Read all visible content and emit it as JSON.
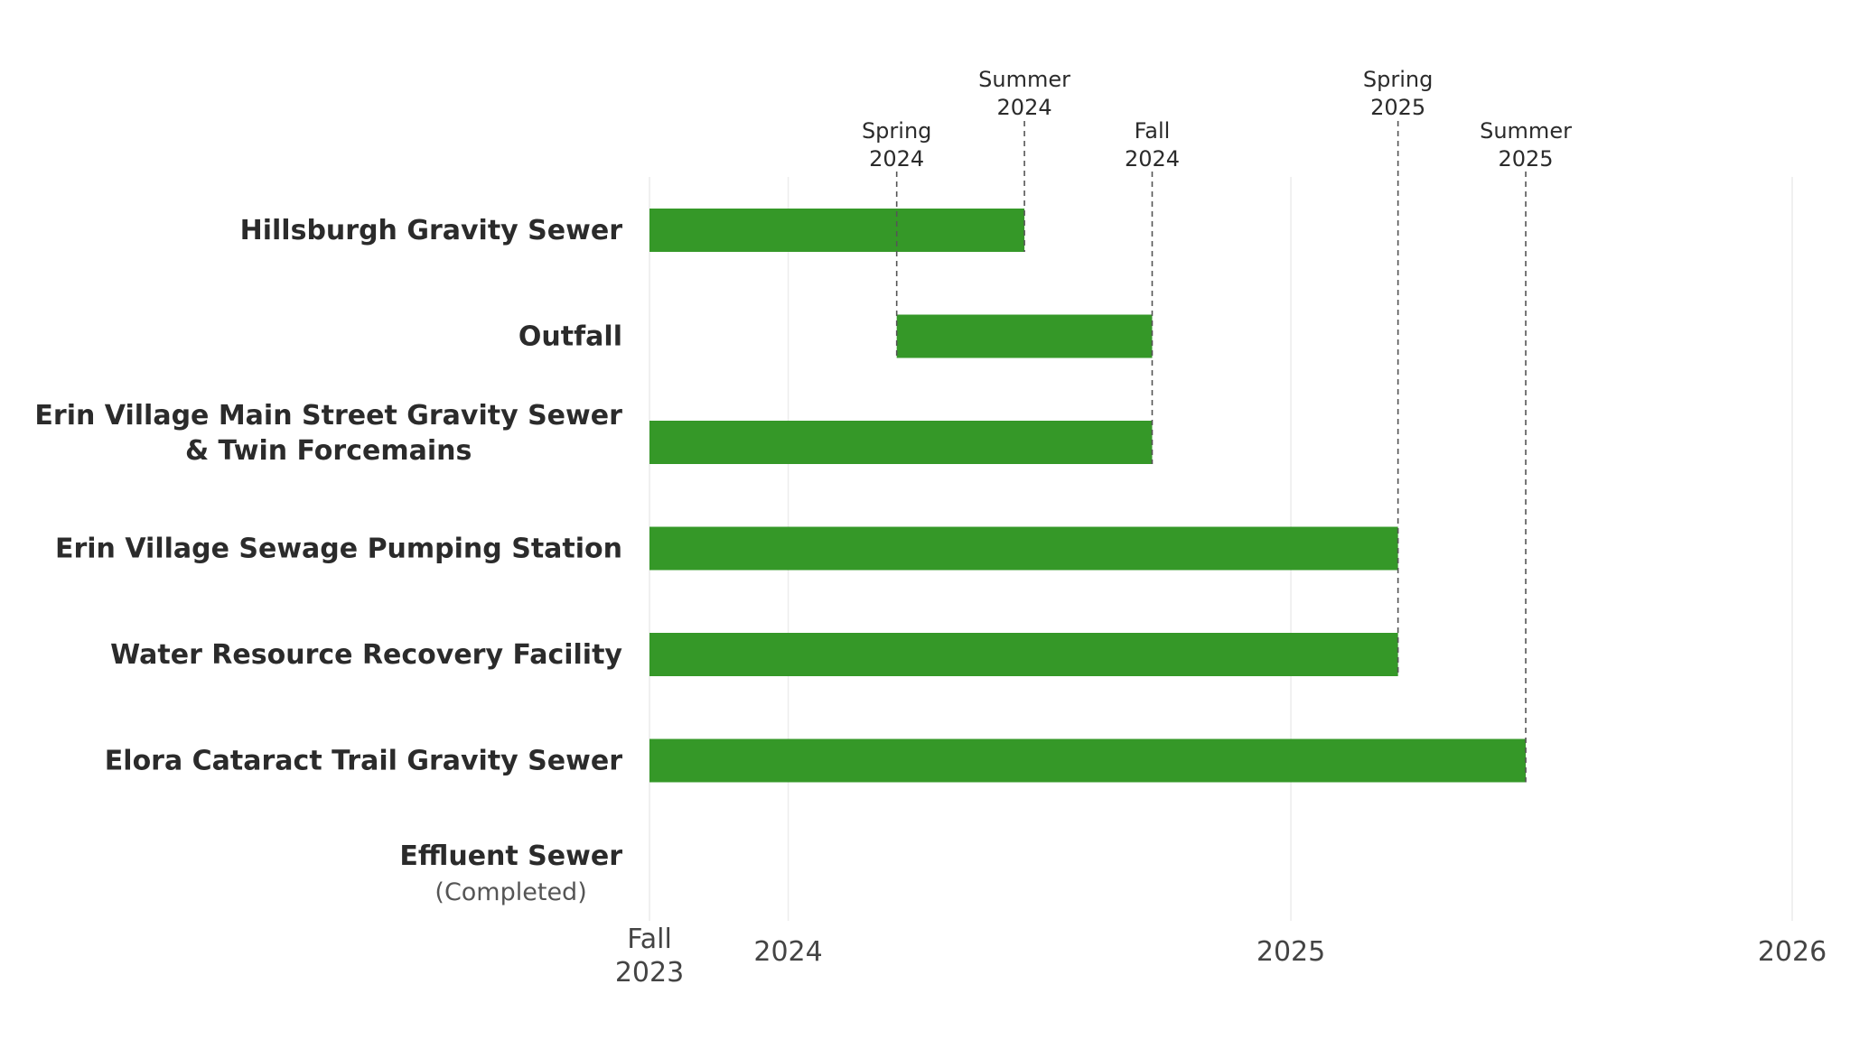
{
  "chart_data": {
    "type": "bar",
    "orientation": "horizontal",
    "subtype": "gantt",
    "title": "",
    "xlabel": "",
    "ylabel": "",
    "x_axis": "date",
    "xlim": [
      "2023-09-22",
      "2026-01-01"
    ],
    "grid": "vertical",
    "legend": "none",
    "bar_color": "#359828",
    "tasks": [
      {
        "label": "Hillsburgh Gravity Sewer",
        "start": "2023-09-22",
        "end": "2024-06-21"
      },
      {
        "label": "Outfall",
        "start": "2024-03-20",
        "end": "2024-09-22"
      },
      {
        "label": "Erin Village Main Street Gravity Sewer & Twin Forcemains",
        "label_lines": [
          "Erin Village Main Street Gravity Sewer",
          "& Twin Forcemains"
        ],
        "start": "2023-09-22",
        "end": "2024-09-22"
      },
      {
        "label": "Erin Village Sewage Pumping Station",
        "start": "2023-09-22",
        "end": "2025-03-20"
      },
      {
        "label": "Water Resource Recovery Facility",
        "start": "2023-09-22",
        "end": "2025-03-20"
      },
      {
        "label": "Elora Cataract Trail Gravity Sewer",
        "start": "2023-09-22",
        "end": "2025-06-21"
      },
      {
        "label": "Effluent Sewer",
        "note": "(Completed)",
        "start": null,
        "end": null
      }
    ],
    "x_ticks": [
      {
        "date": "2023-09-22",
        "label_lines": [
          "Fall",
          "2023"
        ]
      },
      {
        "date": "2024-01-01",
        "label_lines": [
          "2024"
        ]
      },
      {
        "date": "2025-01-01",
        "label_lines": [
          "2025"
        ]
      },
      {
        "date": "2026-01-01",
        "label_lines": [
          "2026"
        ]
      }
    ],
    "markers": [
      {
        "date": "2024-03-20",
        "label_lines": [
          "Spring",
          "2024"
        ],
        "label_level": "low"
      },
      {
        "date": "2024-06-21",
        "label_lines": [
          "Summer",
          "2024"
        ],
        "label_level": "high"
      },
      {
        "date": "2024-09-22",
        "label_lines": [
          "Fall",
          "2024"
        ],
        "label_level": "low"
      },
      {
        "date": "2025-03-20",
        "label_lines": [
          "Spring",
          "2025"
        ],
        "label_level": "high"
      },
      {
        "date": "2025-06-21",
        "label_lines": [
          "Summer",
          "2025"
        ],
        "label_level": "low"
      }
    ]
  }
}
